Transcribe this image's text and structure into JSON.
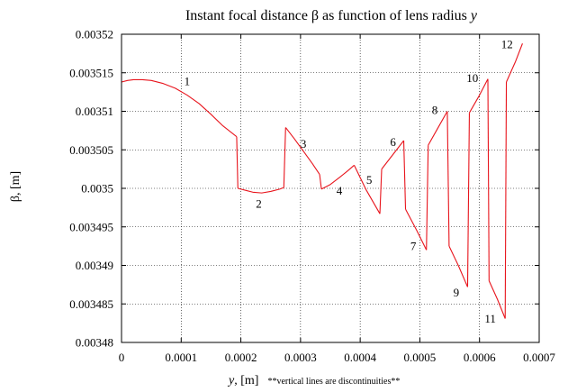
{
  "chart_data": {
    "type": "line",
    "title": "Instant focal distance β as function of lens radius ",
    "title_italic": "y",
    "xlabel_var": "y",
    "xlabel_unit": ", [m]",
    "xlabel_note": "**vertical lines are discontinuities**",
    "ylabel": "β, [m]",
    "xlim": [
      0,
      0.0007
    ],
    "ylim": [
      0.00348,
      0.00352
    ],
    "xticks": [
      0,
      0.0001,
      0.0002,
      0.0003,
      0.0004,
      0.0005,
      0.0006,
      0.0007
    ],
    "xtick_labels": [
      "0",
      "0.0001",
      "0.0002",
      "0.0003",
      "0.0004",
      "0.0005",
      "0.0006",
      "0.0007"
    ],
    "yticks": [
      0.00348,
      0.003485,
      0.00349,
      0.003495,
      0.0035,
      0.003505,
      0.00351,
      0.003515,
      0.00352
    ],
    "ytick_labels": [
      "0.00348",
      "0.003485",
      "0.00349",
      "0.003495",
      "0.0035",
      "0.003505",
      "0.00351",
      "0.003515",
      "0.00352"
    ],
    "grid": true,
    "grid_style": "dotted",
    "line_color": "#e8141c",
    "series": [
      {
        "segments": [
          [
            [
              0,
              0.0035138
            ],
            [
              1e-05,
              0.003514
            ],
            [
              2e-05,
              0.0035141
            ],
            [
              3.5e-05,
              0.0035141
            ],
            [
              5e-05,
              0.003514
            ],
            [
              7e-05,
              0.0035136
            ],
            [
              9e-05,
              0.003513
            ],
            [
              0.00011,
              0.0035121
            ],
            [
              0.00013,
              0.003511
            ],
            [
              0.00015,
              0.0035096
            ],
            [
              0.00017,
              0.0035081
            ],
            [
              0.000193,
              0.0035067
            ]
          ],
          [
            [
              0.000193,
              0.0035067
            ],
            [
              0.000195,
              0.0035
            ]
          ],
          [
            [
              0.000195,
              0.0035
            ],
            [
              0.00021,
              0.0034997
            ],
            [
              0.00022,
              0.0034995
            ],
            [
              0.000235,
              0.0034994
            ],
            [
              0.00025,
              0.0034996
            ],
            [
              0.000265,
              0.0034999
            ],
            [
              0.000272,
              0.0035001
            ]
          ],
          [
            [
              0.000272,
              0.0035001
            ],
            [
              0.000275,
              0.0035079
            ]
          ],
          [
            [
              0.000275,
              0.0035079
            ],
            [
              0.00029,
              0.0035064
            ],
            [
              0.000305,
              0.0035048
            ],
            [
              0.00032,
              0.0035032
            ],
            [
              0.000332,
              0.0035018
            ]
          ],
          [
            [
              0.000332,
              0.0035018
            ],
            [
              0.000335,
              0.0034999
            ]
          ],
          [
            [
              0.000335,
              0.0034999
            ],
            [
              0.00035,
              0.0035005
            ],
            [
              0.000365,
              0.0035014
            ],
            [
              0.000378,
              0.0035022
            ],
            [
              0.00039,
              0.003503
            ]
          ],
          [
            [
              0.00039,
              0.003503
            ],
            [
              0.00041,
              0.0034998
            ],
            [
              0.000433,
              0.0034967
            ]
          ],
          [
            [
              0.000433,
              0.0034967
            ],
            [
              0.000436,
              0.0035025
            ]
          ],
          [
            [
              0.000436,
              0.0035025
            ],
            [
              0.000455,
              0.0035044
            ],
            [
              0.000473,
              0.0035062
            ]
          ],
          [
            [
              0.000473,
              0.0035062
            ],
            [
              0.000476,
              0.0034973
            ]
          ],
          [
            [
              0.000476,
              0.0034973
            ],
            [
              0.000495,
              0.0034945
            ],
            [
              0.000511,
              0.003492
            ]
          ],
          [
            [
              0.000511,
              0.003492
            ],
            [
              0.000514,
              0.0035056
            ]
          ],
          [
            [
              0.000514,
              0.0035056
            ],
            [
              0.00053,
              0.0035078
            ],
            [
              0.000546,
              0.00351
            ]
          ],
          [
            [
              0.000546,
              0.00351
            ],
            [
              0.000549,
              0.0034925
            ]
          ],
          [
            [
              0.000549,
              0.0034925
            ],
            [
              0.000565,
              0.0034899
            ],
            [
              0.00058,
              0.0034872
            ]
          ],
          [
            [
              0.00058,
              0.0034872
            ],
            [
              0.000583,
              0.0035098
            ]
          ],
          [
            [
              0.000583,
              0.0035098
            ],
            [
              0.0006,
              0.0035121
            ],
            [
              0.000614,
              0.0035142
            ]
          ],
          [
            [
              0.000614,
              0.0035142
            ],
            [
              0.000616,
              0.003488
            ]
          ],
          [
            [
              0.000616,
              0.003488
            ],
            [
              0.00063,
              0.0034856
            ],
            [
              0.000643,
              0.0034831
            ]
          ],
          [
            [
              0.000643,
              0.0034831
            ],
            [
              0.000645,
              0.0035138
            ]
          ],
          [
            [
              0.000645,
              0.0035138
            ],
            [
              0.00066,
              0.0035164
            ],
            [
              0.000672,
              0.0035188
            ]
          ]
        ]
      }
    ],
    "annotations": [
      {
        "text": "1",
        "x": 0.00011,
        "y": 0.0035139
      },
      {
        "text": "2",
        "x": 0.00023,
        "y": 0.003498
      },
      {
        "text": "3",
        "x": 0.000305,
        "y": 0.0035058
      },
      {
        "text": "4",
        "x": 0.000365,
        "y": 0.0034997
      },
      {
        "text": "5",
        "x": 0.000415,
        "y": 0.0035011
      },
      {
        "text": "6",
        "x": 0.000455,
        "y": 0.003506
      },
      {
        "text": "7",
        "x": 0.000489,
        "y": 0.0034925
      },
      {
        "text": "8",
        "x": 0.000525,
        "y": 0.0035102
      },
      {
        "text": "9",
        "x": 0.000561,
        "y": 0.0034865
      },
      {
        "text": "10",
        "x": 0.000588,
        "y": 0.0035143
      },
      {
        "text": "11",
        "x": 0.000618,
        "y": 0.0034831
      },
      {
        "text": "12",
        "x": 0.000646,
        "y": 0.0035187
      }
    ]
  }
}
